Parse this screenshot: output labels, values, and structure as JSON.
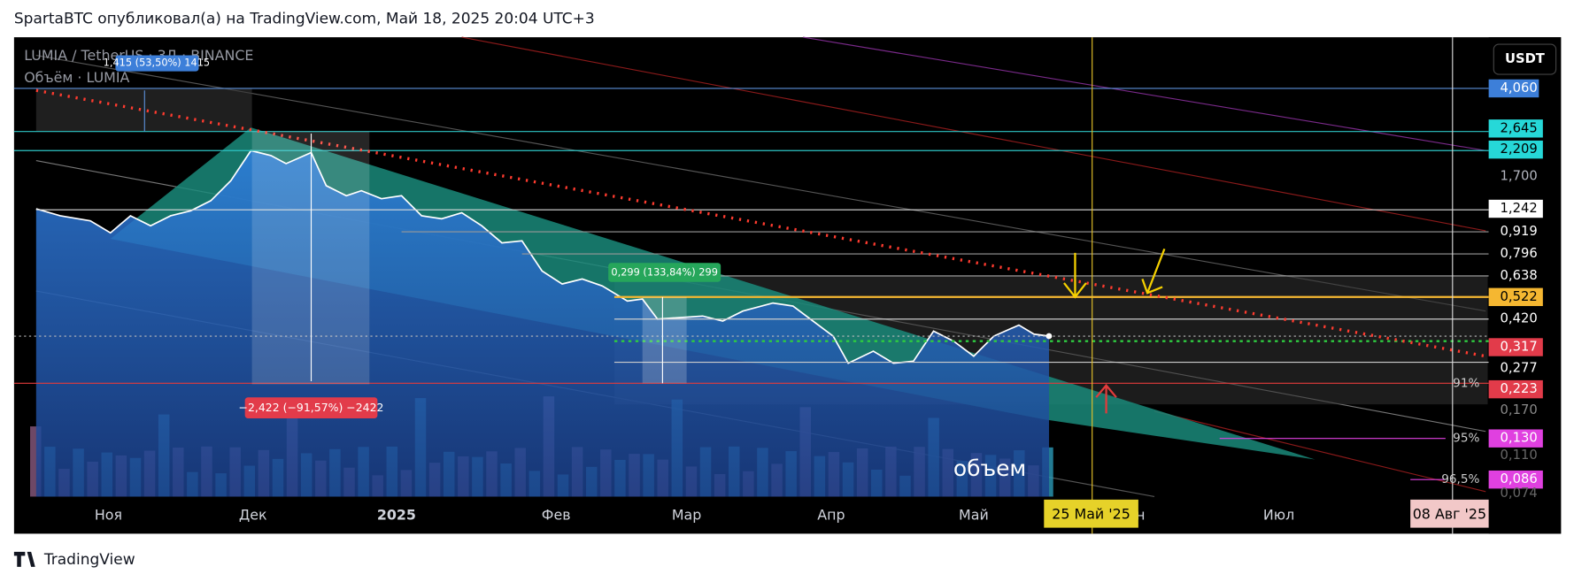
{
  "header": {
    "title": "SpartaBTC опубликовал(а) на TradingView.com, Май 18, 2025 20:04 UTC+3"
  },
  "legend": {
    "symbol": "LUMIA / TetherUS · 3Д · BINANCE",
    "volume": "Объём · LUMIA"
  },
  "currency": "USDT",
  "price_scale": [
    "4,060",
    "2,645",
    "2,209",
    "1,700",
    "1,242",
    "0,919",
    "0,796",
    "0,638",
    "0,522",
    "0,420",
    "0,317",
    "0,277",
    "0,223",
    "0,170",
    "0,130",
    "0,110",
    "0,086",
    "0,074"
  ],
  "time_scale": [
    "Ноя",
    "Дек",
    "2025",
    "Фев",
    "Мар",
    "Апр",
    "Май",
    "Июн",
    "Июл",
    "25 Май '25",
    "08 Авг '25"
  ],
  "annotations": {
    "measure_up": "1,415 (53,50%) 1415",
    "measure_mid": "0,299 (133,84%) 299",
    "measure_down": "−2,422 (−91,57%) −2422",
    "volume_note": "объем",
    "fib_91": "91%",
    "fib_95": "95%",
    "fib_965": "96,5%"
  },
  "footer": {
    "brand": "TradingView"
  }
}
